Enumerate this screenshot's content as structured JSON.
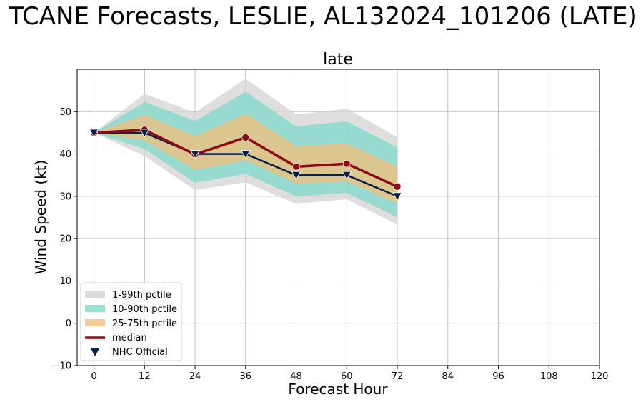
{
  "chart_data": {
    "type": "line",
    "suptitle": "TCANE Forecasts, LESLIE, AL132024_101206 (LATE)",
    "title": "late",
    "xlabel": "Forecast Hour",
    "ylabel": "Wind Speed (kt)",
    "xlim": [
      -4,
      120
    ],
    "ylim": [
      -10,
      60
    ],
    "xticks": [
      0,
      12,
      24,
      36,
      48,
      60,
      72,
      84,
      96,
      108,
      120
    ],
    "yticks": [
      -10,
      0,
      10,
      20,
      30,
      40,
      50
    ],
    "grid": true,
    "legend_position": "lower-left",
    "x": [
      0,
      12,
      24,
      36,
      48,
      60,
      72
    ],
    "bands": [
      {
        "name": "1-99th pctile",
        "color": "#d3d3d3",
        "lower": [
          45,
          39.5,
          31.5,
          33.3,
          28.2,
          29.3,
          23.3
        ],
        "upper": [
          45,
          54.2,
          49.8,
          57.8,
          49.3,
          50.7,
          44.0
        ]
      },
      {
        "name": "10-90th pctile",
        "color": "#7fd8c9",
        "lower": [
          45,
          41.2,
          33.2,
          35.3,
          30.0,
          30.8,
          25.0
        ],
        "upper": [
          45,
          52.3,
          47.8,
          54.7,
          46.5,
          47.7,
          41.5
        ]
      },
      {
        "name": "25-75th pctile",
        "color": "#f3bf7b",
        "lower": [
          45,
          43.2,
          36.2,
          38.5,
          33.0,
          33.5,
          28.2
        ],
        "upper": [
          45,
          49.2,
          44.2,
          49.5,
          41.8,
          42.5,
          37.0
        ]
      }
    ],
    "series": [
      {
        "name": "median",
        "color": "#8b0a14",
        "marker": "circle",
        "values": [
          45,
          45.7,
          39.9,
          43.9,
          37.0,
          37.7,
          32.3
        ]
      },
      {
        "name": "NHC Official",
        "color": "#0b1f44",
        "marker": "triangle-down",
        "values": [
          45,
          45,
          40,
          40,
          35,
          35,
          30
        ]
      }
    ]
  }
}
